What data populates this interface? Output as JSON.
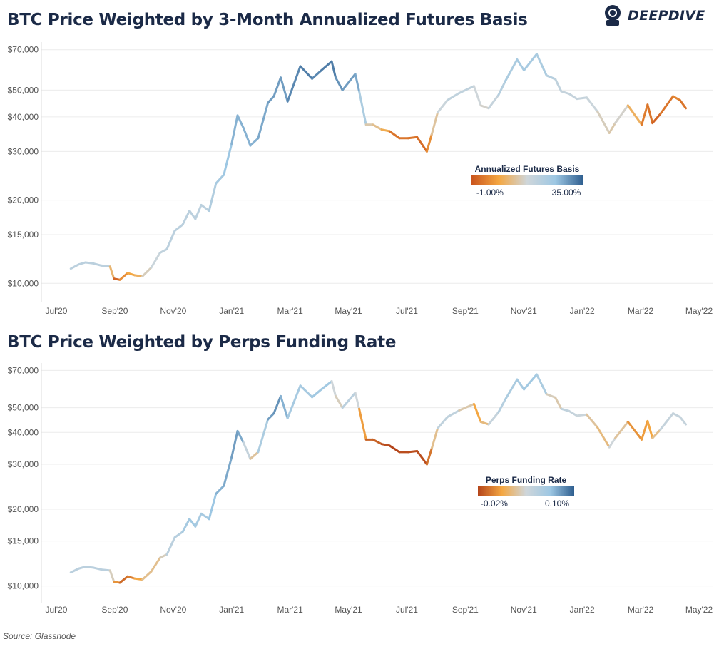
{
  "logo": {
    "text": "DEEPDIVE",
    "icon": "diver-helmet-icon"
  },
  "source": "Source: Glassnode",
  "chart_data": [
    {
      "type": "line",
      "title": "BTC Price Weighted by 3-Month Annualized Futures Basis",
      "scale": "log",
      "ylim": [
        9000,
        72000
      ],
      "y_ticks": [
        10000,
        15000,
        20000,
        30000,
        40000,
        50000,
        70000
      ],
      "y_tick_labels": [
        "$10,000",
        "$15,000",
        "$20,000",
        "$30,000",
        "$40,000",
        "$50,000",
        "$70,000"
      ],
      "x_tick_labels": [
        "Jul'20",
        "Sep'20",
        "Nov'20",
        "Jan'21",
        "Mar'21",
        "May'21",
        "Jul'21",
        "Sep'21",
        "Nov'21",
        "Jan'22",
        "Mar'22",
        "May'22"
      ],
      "xlim": [
        "2020-06-22",
        "2022-05-08"
      ],
      "grid": true,
      "legend": {
        "title": "Annualized Futures Basis",
        "min_label": "-1.00%",
        "max_label": "35.00%",
        "placement": "center-right"
      },
      "color_scale": {
        "low": "#c9531c",
        "mid_low": "#f4a742",
        "mid": "#cfd6da",
        "mid_high": "#9dc7e3",
        "high": "#2e5e8f"
      },
      "series": [
        {
          "x": [
            "2020-07-22",
            "2020-07-30",
            "2020-08-06",
            "2020-08-14",
            "2020-08-22",
            "2020-08-31",
            "2020-09-04",
            "2020-09-10",
            "2020-09-18",
            "2020-09-25",
            "2020-10-03",
            "2020-10-12",
            "2020-10-21",
            "2020-10-28",
            "2020-11-05",
            "2020-11-13",
            "2020-11-20",
            "2020-11-26",
            "2020-12-02",
            "2020-12-10",
            "2020-12-17",
            "2020-12-25",
            "2021-01-02",
            "2021-01-08",
            "2021-01-14",
            "2021-01-21",
            "2021-01-29",
            "2021-02-08",
            "2021-02-14",
            "2021-02-21",
            "2021-02-28",
            "2021-03-13",
            "2021-03-25",
            "2021-04-03",
            "2021-04-14",
            "2021-04-18",
            "2021-04-25",
            "2021-05-08",
            "2021-05-12",
            "2021-05-19",
            "2021-05-26",
            "2021-06-04",
            "2021-06-12",
            "2021-06-22",
            "2021-07-01",
            "2021-07-10",
            "2021-07-20",
            "2021-07-25",
            "2021-07-31",
            "2021-08-10",
            "2021-08-22",
            "2021-09-06",
            "2021-09-13",
            "2021-09-21",
            "2021-10-01",
            "2021-10-08",
            "2021-10-20",
            "2021-10-27",
            "2021-11-09",
            "2021-11-19",
            "2021-11-28",
            "2021-12-04",
            "2021-12-12",
            "2021-12-20",
            "2021-12-30",
            "2022-01-10",
            "2022-01-22",
            "2022-01-28",
            "2022-02-10",
            "2022-02-24",
            "2022-03-02",
            "2022-03-07",
            "2022-03-15",
            "2022-03-28",
            "2022-04-04",
            "2022-04-10"
          ],
          "y": [
            11300,
            11700,
            11900,
            11800,
            11600,
            11500,
            10400,
            10300,
            10900,
            10700,
            10600,
            11400,
            12900,
            13300,
            15500,
            16300,
            18300,
            17100,
            19200,
            18300,
            23000,
            24700,
            32000,
            40500,
            36500,
            31500,
            33500,
            45000,
            47500,
            55500,
            45500,
            61000,
            55000,
            58800,
            63500,
            55500,
            50000,
            57200,
            49500,
            37500,
            37500,
            36000,
            35500,
            33500,
            33500,
            33800,
            30000,
            34600,
            41500,
            46000,
            48800,
            51700,
            44000,
            43000,
            48000,
            53900,
            64500,
            59000,
            67500,
            56500,
            54800,
            49500,
            48500,
            46500,
            47000,
            41800,
            35000,
            38000,
            44000,
            37500,
            44300,
            38000,
            41000,
            47500,
            46000,
            43000
          ],
          "basis": [
            0.6,
            0.6,
            0.6,
            0.6,
            0.6,
            0.6,
            0.05,
            0.05,
            0.3,
            0.2,
            0.4,
            0.5,
            0.55,
            0.6,
            0.6,
            0.6,
            0.6,
            0.6,
            0.6,
            0.6,
            0.7,
            0.7,
            0.8,
            0.8,
            0.8,
            0.8,
            0.8,
            0.85,
            0.85,
            0.85,
            0.85,
            0.95,
            0.9,
            0.9,
            0.95,
            0.9,
            0.85,
            0.85,
            0.8,
            0.55,
            0.3,
            0.45,
            0.1,
            0.1,
            0.1,
            0.1,
            0.05,
            0.3,
            0.5,
            0.55,
            0.6,
            0.55,
            0.45,
            0.5,
            0.6,
            0.65,
            0.7,
            0.7,
            0.7,
            0.65,
            0.6,
            0.55,
            0.55,
            0.55,
            0.55,
            0.5,
            0.4,
            0.45,
            0.5,
            0.1,
            0.15,
            0.05,
            0.05,
            0.15,
            0.15,
            0.05
          ]
        }
      ]
    },
    {
      "type": "line",
      "title": "BTC Price Weighted by Perps Funding Rate",
      "scale": "log",
      "ylim": [
        9000,
        72000
      ],
      "y_ticks": [
        10000,
        15000,
        20000,
        30000,
        40000,
        50000,
        70000
      ],
      "y_tick_labels": [
        "$10,000",
        "$15,000",
        "$20,000",
        "$30,000",
        "$40,000",
        "$50,000",
        "$70,000"
      ],
      "x_tick_labels": [
        "Jul'20",
        "Sep'20",
        "Nov'20",
        "Jan'21",
        "Mar'21",
        "May'21",
        "Jul'21",
        "Sep'21",
        "Nov'21",
        "Jan'22",
        "Mar'22",
        "May'22"
      ],
      "xlim": [
        "2020-06-22",
        "2022-05-08"
      ],
      "grid": true,
      "legend": {
        "title": "Perps Funding Rate",
        "min_label": "-0.02%",
        "max_label": "0.10%",
        "placement": "center-right"
      },
      "color_scale": {
        "low": "#b4441a",
        "mid_low": "#f4a742",
        "mid": "#cfd6da",
        "mid_high": "#9dc7e3",
        "high": "#2e5e8f"
      },
      "series": [
        {
          "x": [
            "2020-07-22",
            "2020-07-30",
            "2020-08-06",
            "2020-08-14",
            "2020-08-22",
            "2020-08-31",
            "2020-09-04",
            "2020-09-10",
            "2020-09-18",
            "2020-09-25",
            "2020-10-03",
            "2020-10-12",
            "2020-10-21",
            "2020-10-28",
            "2020-11-05",
            "2020-11-13",
            "2020-11-20",
            "2020-11-26",
            "2020-12-02",
            "2020-12-10",
            "2020-12-17",
            "2020-12-25",
            "2021-01-02",
            "2021-01-08",
            "2021-01-14",
            "2021-01-21",
            "2021-01-29",
            "2021-02-08",
            "2021-02-14",
            "2021-02-21",
            "2021-02-28",
            "2021-03-13",
            "2021-03-25",
            "2021-04-03",
            "2021-04-14",
            "2021-04-18",
            "2021-04-25",
            "2021-05-08",
            "2021-05-12",
            "2021-05-19",
            "2021-05-26",
            "2021-06-04",
            "2021-06-12",
            "2021-06-22",
            "2021-07-01",
            "2021-07-10",
            "2021-07-20",
            "2021-07-25",
            "2021-07-31",
            "2021-08-10",
            "2021-08-22",
            "2021-09-06",
            "2021-09-13",
            "2021-09-21",
            "2021-10-01",
            "2021-10-08",
            "2021-10-20",
            "2021-10-27",
            "2021-11-09",
            "2021-11-19",
            "2021-11-28",
            "2021-12-04",
            "2021-12-12",
            "2021-12-20",
            "2021-12-30",
            "2022-01-10",
            "2022-01-22",
            "2022-01-28",
            "2022-02-10",
            "2022-02-24",
            "2022-03-02",
            "2022-03-07",
            "2022-03-15",
            "2022-03-28",
            "2022-04-04",
            "2022-04-10"
          ],
          "y": [
            11300,
            11700,
            11900,
            11800,
            11600,
            11500,
            10400,
            10300,
            10900,
            10700,
            10600,
            11400,
            12900,
            13300,
            15500,
            16300,
            18300,
            17100,
            19200,
            18300,
            23000,
            24700,
            32000,
            40500,
            36500,
            31500,
            33500,
            45000,
            47500,
            55500,
            45500,
            61000,
            55000,
            58800,
            63500,
            55500,
            50000,
            57200,
            49500,
            37500,
            37500,
            36000,
            35500,
            33500,
            33500,
            33800,
            30000,
            34600,
            41500,
            46000,
            48800,
            51700,
            44000,
            43000,
            48000,
            53900,
            64500,
            59000,
            67500,
            56500,
            54800,
            49500,
            48500,
            46500,
            47000,
            41800,
            35000,
            38000,
            44000,
            37500,
            44300,
            38000,
            41000,
            47500,
            46000,
            43000
          ],
          "funding": [
            0.6,
            0.6,
            0.6,
            0.6,
            0.6,
            0.6,
            0.3,
            0.1,
            0.1,
            0.2,
            0.3,
            0.45,
            0.3,
            0.6,
            0.6,
            0.65,
            0.75,
            0.7,
            0.7,
            0.7,
            0.8,
            0.8,
            0.85,
            0.85,
            0.8,
            0.3,
            0.5,
            0.85,
            0.85,
            0.9,
            0.7,
            0.7,
            0.7,
            0.75,
            0.7,
            0.3,
            0.6,
            0.6,
            0.4,
            0.05,
            0.1,
            0.05,
            0.0,
            0.0,
            0.05,
            0.0,
            0.05,
            0.2,
            0.55,
            0.6,
            0.55,
            0.3,
            0.2,
            0.5,
            0.6,
            0.65,
            0.7,
            0.7,
            0.75,
            0.6,
            0.3,
            0.55,
            0.6,
            0.5,
            0.55,
            0.25,
            0.45,
            0.55,
            0.25,
            0.15,
            0.3,
            0.2,
            0.55,
            0.55,
            0.55,
            0.55
          ]
        }
      ]
    }
  ]
}
